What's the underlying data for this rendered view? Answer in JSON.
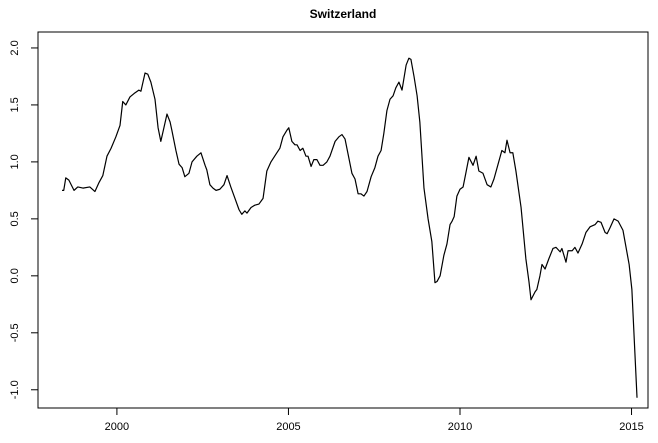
{
  "chart_data": {
    "type": "line",
    "title": "Switzerland",
    "color": "#000000",
    "x": [
      1998.4,
      1998.45,
      1998.51,
      1998.6,
      1998.75,
      1998.86,
      1999.01,
      1999.21,
      1999.36,
      1999.48,
      1999.59,
      1999.71,
      1999.83,
      1999.97,
      2000.09,
      2000.17,
      2000.26,
      2000.38,
      2000.5,
      2000.64,
      2000.7,
      2000.82,
      2000.9,
      2000.99,
      2001.11,
      2001.2,
      2001.28,
      2001.37,
      2001.46,
      2001.55,
      2001.6,
      2001.72,
      2001.81,
      2001.9,
      2001.98,
      2002.1,
      2002.19,
      2002.33,
      2002.45,
      2002.57,
      2002.62,
      2002.71,
      2002.8,
      2002.89,
      2003.0,
      2003.12,
      2003.21,
      2003.32,
      2003.44,
      2003.56,
      2003.64,
      2003.73,
      2003.79,
      2003.91,
      2004.02,
      2004.14,
      2004.26,
      2004.37,
      2004.49,
      2004.64,
      2004.75,
      2004.84,
      2004.96,
      2005.01,
      2005.1,
      2005.19,
      2005.25,
      2005.34,
      2005.42,
      2005.51,
      2005.57,
      2005.66,
      2005.74,
      2005.83,
      2005.92,
      2006.01,
      2006.12,
      2006.21,
      2006.36,
      2006.47,
      2006.56,
      2006.65,
      2006.73,
      2006.85,
      2006.94,
      2007.03,
      2007.11,
      2007.2,
      2007.29,
      2007.41,
      2007.52,
      2007.61,
      2007.7,
      2007.78,
      2007.87,
      2007.96,
      2008.05,
      2008.13,
      2008.22,
      2008.31,
      2008.43,
      2008.51,
      2008.57,
      2008.66,
      2008.75,
      2008.83,
      2008.95,
      2009.07,
      2009.18,
      2009.27,
      2009.33,
      2009.42,
      2009.53,
      2009.62,
      2009.71,
      2009.77,
      2009.83,
      2009.91,
      2010.0,
      2010.09,
      2010.17,
      2010.26,
      2010.38,
      2010.47,
      2010.55,
      2010.67,
      2010.79,
      2010.9,
      2010.99,
      2011.11,
      2011.22,
      2011.31,
      2011.37,
      2011.46,
      2011.54,
      2011.63,
      2011.78,
      2011.92,
      2012.01,
      2012.07,
      2012.19,
      2012.24,
      2012.33,
      2012.39,
      2012.48,
      2012.59,
      2012.71,
      2012.8,
      2012.92,
      2012.97,
      2013.09,
      2013.15,
      2013.27,
      2013.35,
      2013.44,
      2013.56,
      2013.67,
      2013.79,
      2013.94,
      2014.02,
      2014.11,
      2014.23,
      2014.29,
      2014.37,
      2014.49,
      2014.61,
      2014.75,
      2014.93,
      2015.01,
      2015.16
    ],
    "values": [
      0.75,
      0.75,
      0.86,
      0.84,
      0.75,
      0.78,
      0.77,
      0.78,
      0.74,
      0.82,
      0.88,
      1.05,
      1.12,
      1.22,
      1.32,
      1.53,
      1.5,
      1.57,
      1.6,
      1.63,
      1.62,
      1.78,
      1.77,
      1.7,
      1.55,
      1.3,
      1.18,
      1.3,
      1.42,
      1.35,
      1.28,
      1.1,
      0.98,
      0.95,
      0.87,
      0.9,
      1.0,
      1.05,
      1.08,
      0.97,
      0.93,
      0.8,
      0.77,
      0.75,
      0.76,
      0.8,
      0.88,
      0.78,
      0.68,
      0.58,
      0.54,
      0.57,
      0.55,
      0.6,
      0.62,
      0.63,
      0.68,
      0.92,
      1.0,
      1.07,
      1.12,
      1.22,
      1.28,
      1.3,
      1.18,
      1.15,
      1.15,
      1.1,
      1.12,
      1.05,
      1.05,
      0.96,
      1.02,
      1.02,
      0.97,
      0.97,
      1.0,
      1.05,
      1.18,
      1.22,
      1.24,
      1.2,
      1.08,
      0.9,
      0.85,
      0.72,
      0.72,
      0.7,
      0.74,
      0.87,
      0.95,
      1.05,
      1.1,
      1.25,
      1.45,
      1.55,
      1.58,
      1.65,
      1.7,
      1.63,
      1.85,
      1.91,
      1.9,
      1.75,
      1.58,
      1.35,
      0.77,
      0.5,
      0.3,
      -0.06,
      -0.05,
      0.0,
      0.18,
      0.28,
      0.45,
      0.48,
      0.52,
      0.7,
      0.76,
      0.78,
      0.9,
      1.04,
      0.97,
      1.05,
      0.92,
      0.9,
      0.8,
      0.78,
      0.85,
      0.98,
      1.1,
      1.08,
      1.19,
      1.08,
      1.08,
      0.92,
      0.6,
      0.15,
      -0.05,
      -0.21,
      -0.14,
      -0.12,
      0.0,
      0.1,
      0.06,
      0.15,
      0.24,
      0.25,
      0.21,
      0.24,
      0.12,
      0.22,
      0.22,
      0.25,
      0.2,
      0.28,
      0.38,
      0.43,
      0.45,
      0.48,
      0.47,
      0.38,
      0.37,
      0.42,
      0.5,
      0.48,
      0.4,
      0.1,
      -0.12,
      -1.07
    ],
    "xlim": [
      1997.7,
      2015.48
    ],
    "ylim": [
      -1.16,
      2.14
    ],
    "xticks": [
      2000,
      2005,
      2010,
      2015
    ],
    "yticks": [
      {
        "value": -1,
        "label": "-1.0"
      },
      -0.5,
      {
        "value": 0,
        "label": "0.0"
      },
      0.5,
      {
        "value": 1,
        "label": "1.0"
      },
      1.5,
      {
        "value": 2,
        "label": "2.0"
      }
    ]
  }
}
